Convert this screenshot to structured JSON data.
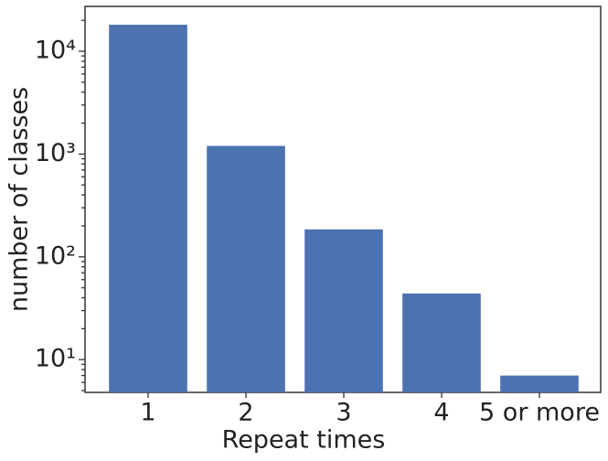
{
  "chart_data": {
    "type": "bar",
    "x_label": "Repeat times",
    "y_label": "number of classes",
    "categories": [
      "1",
      "2",
      "3",
      "4",
      "5 or more"
    ],
    "values": [
      18100,
      1200,
      185,
      44,
      7
    ],
    "color": "#4c72b0",
    "log_scale_y": true,
    "ylim": [
      4.8,
      27300
    ],
    "yticks": [
      {
        "value": 10,
        "label": "10¹"
      },
      {
        "value": 100,
        "label": "10²"
      },
      {
        "value": 1000,
        "label": "10³"
      },
      {
        "value": 10000,
        "label": "10⁴"
      }
    ],
    "yminorticks": [
      5,
      6,
      7,
      8,
      9,
      20,
      30,
      40,
      50,
      60,
      70,
      80,
      90,
      200,
      300,
      400,
      500,
      600,
      700,
      800,
      900,
      2000,
      3000,
      4000,
      5000,
      6000,
      7000,
      8000,
      9000,
      20000
    ],
    "grid": false
  }
}
